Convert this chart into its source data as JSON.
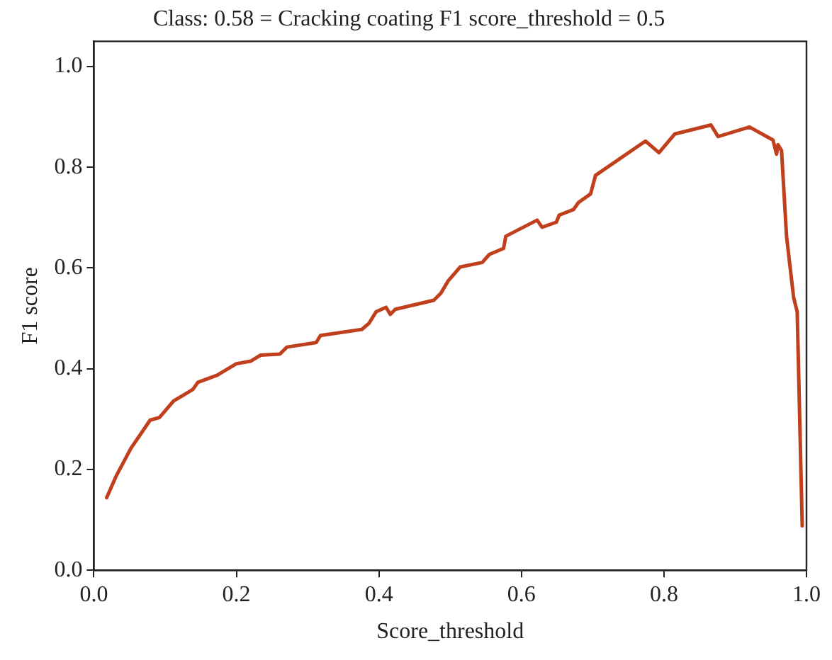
{
  "chart_data": {
    "type": "line",
    "title": "Class: 0.58 = Cracking coating F1 score_threshold = 0.5",
    "xlabel": "Score_threshold",
    "ylabel": "F1 score",
    "x": [
      0.018,
      0.031,
      0.052,
      0.079,
      0.092,
      0.112,
      0.139,
      0.146,
      0.173,
      0.2,
      0.22,
      0.234,
      0.261,
      0.271,
      0.312,
      0.318,
      0.376,
      0.386,
      0.396,
      0.41,
      0.416,
      0.423,
      0.477,
      0.487,
      0.497,
      0.514,
      0.545,
      0.555,
      0.575,
      0.578,
      0.622,
      0.629,
      0.649,
      0.653,
      0.673,
      0.68,
      0.697,
      0.704,
      0.774,
      0.793,
      0.815,
      0.866,
      0.876,
      0.92,
      0.953,
      0.958,
      0.96,
      0.965,
      0.972,
      0.982,
      0.987,
      0.994
    ],
    "series": [
      {
        "color": "#c0401e",
        "values": [
          0.144,
          0.186,
          0.242,
          0.298,
          0.303,
          0.336,
          0.359,
          0.373,
          0.387,
          0.41,
          0.415,
          0.427,
          0.429,
          0.443,
          0.452,
          0.466,
          0.478,
          0.49,
          0.513,
          0.522,
          0.508,
          0.518,
          0.536,
          0.55,
          0.574,
          0.602,
          0.611,
          0.627,
          0.639,
          0.663,
          0.695,
          0.681,
          0.691,
          0.705,
          0.716,
          0.73,
          0.747,
          0.784,
          0.852,
          0.829,
          0.866,
          0.884,
          0.861,
          0.88,
          0.854,
          0.826,
          0.845,
          0.833,
          0.663,
          0.541,
          0.513,
          0.088
        ]
      }
    ],
    "xlim": [
      0,
      1.0
    ],
    "xticks": [
      {
        "value": 0,
        "label": "0.0"
      },
      0.2,
      0.4,
      0.6,
      0.8,
      {
        "value": 1,
        "label": "1.0"
      }
    ],
    "ylim": [
      0,
      1.05
    ],
    "yticks": [
      {
        "value": 0,
        "label": "0.0"
      },
      0.2,
      0.4,
      0.6,
      0.8,
      {
        "value": 1,
        "label": "1.0"
      }
    ],
    "grid": false,
    "legend": false,
    "marker": "none",
    "line_style": "solid"
  }
}
